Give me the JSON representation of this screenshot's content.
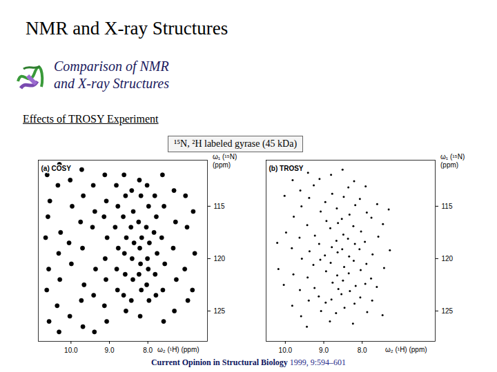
{
  "slide": {
    "title": "NMR and X-ray Structures",
    "subtitle_lines": [
      "Comparison of NMR",
      "and X-ray Structures"
    ],
    "section": "Effects of TROSY Experiment",
    "sample_box": "¹⁵N, ²H labeled gyrase (45 kDa)",
    "citation": {
      "journal": "Current Opinion in Structural Biology",
      "rest": "1999, 9:594–601"
    }
  },
  "chart_data": [
    {
      "type": "scatter",
      "title": "(a) COSY",
      "x_label": "ω₂ (¹H) (ppm)",
      "y_label": "ω₁ (¹⁵N) (ppm)",
      "xlim": [
        10.85,
        6.45
      ],
      "xticks": [
        10,
        9,
        8
      ],
      "ylim": [
        127.9,
        110.6
      ],
      "yticks": [
        115,
        120,
        125
      ],
      "color": "#000000",
      "marker": "blob",
      "x": [
        10.62,
        10.55,
        10.6,
        10.66,
        10.58,
        10.63,
        10.57,
        10.3,
        10.34,
        10.27,
        10.32,
        10.29,
        10.36,
        10.31,
        10.02,
        9.97,
        10.05,
        9.99,
        10.03,
        9.72,
        9.68,
        9.75,
        9.7,
        9.66,
        9.73,
        9.69,
        9.42,
        9.38,
        9.44,
        9.36,
        9.41,
        9.39,
        9.12,
        9.08,
        9.14,
        9.06,
        9.11,
        9.09,
        9.13,
        9.07,
        8.82,
        8.78,
        8.85,
        8.77,
        8.81,
        8.79,
        8.62,
        8.58,
        8.64,
        8.56,
        8.61,
        8.59,
        8.63,
        8.57,
        8.42,
        8.38,
        8.44,
        8.36,
        8.41,
        8.39,
        8.43,
        8.22,
        8.18,
        8.24,
        8.16,
        8.21,
        8.19,
        8.23,
        8.17,
        8.2,
        8.02,
        7.98,
        8.04,
        7.96,
        8.01,
        7.99,
        8.03,
        7.97,
        7.82,
        7.78,
        7.84,
        7.76,
        7.81,
        7.79,
        7.62,
        7.58,
        7.64,
        7.56,
        7.61,
        7.59,
        7.32,
        7.28,
        7.34,
        7.26,
        7.31,
        7.02,
        6.98,
        7.04,
        6.96,
        6.82,
        6.78,
        6.84
      ],
      "values": [
        112,
        114.5,
        116,
        118,
        121,
        123,
        126,
        111,
        113,
        117.5,
        119.5,
        122,
        124.5,
        127,
        112.5,
        115,
        118.5,
        120.5,
        125.5,
        111.5,
        114,
        116.5,
        119,
        122.5,
        124,
        126.5,
        113,
        115.5,
        117,
        121,
        123.5,
        127,
        112,
        114.5,
        116,
        118,
        120,
        122,
        124.5,
        126,
        113,
        115,
        117,
        119,
        121,
        123,
        112,
        114,
        116,
        118,
        119.5,
        121.5,
        123.5,
        125,
        113.5,
        115.5,
        117,
        118.5,
        120,
        122,
        124,
        112.5,
        114,
        116.5,
        118,
        119,
        120.5,
        121.5,
        123,
        125.5,
        113,
        115,
        117,
        118.5,
        120,
        121,
        122.5,
        124,
        114,
        116,
        117.5,
        119.5,
        121.5,
        123.5,
        112,
        115,
        118,
        120.5,
        123,
        126,
        113.5,
        116.5,
        119,
        122,
        125,
        114,
        117,
        121,
        124,
        115.5,
        119.5,
        123
      ]
    },
    {
      "type": "scatter",
      "title": "(b) TROSY",
      "x_label": "ω₂ (¹H) (ppm)",
      "y_label": "ω₁ (¹⁵N) (ppm)",
      "xlim": [
        10.5,
        6.1
      ],
      "xticks": [
        10,
        9,
        8
      ],
      "ylim": [
        127.9,
        110.6
      ],
      "yticks": [
        115,
        120,
        125
      ],
      "color": "#000000",
      "marker": "dot",
      "x": [
        10.21,
        10.18,
        10.02,
        9.98,
        10.04,
        9.81,
        9.78,
        9.83,
        9.79,
        9.82,
        9.61,
        9.58,
        9.63,
        9.57,
        9.62,
        9.59,
        9.41,
        9.38,
        9.43,
        9.37,
        9.42,
        9.39,
        9.44,
        9.26,
        9.23,
        9.27,
        9.24,
        9.11,
        9.08,
        9.12,
        9.09,
        9.13,
        9.07,
        8.96,
        8.93,
        8.97,
        8.94,
        8.95,
        8.81,
        8.78,
        8.83,
        8.79,
        8.82,
        8.77,
        8.8,
        8.84,
        8.66,
        8.63,
        8.67,
        8.64,
        8.65,
        8.62,
        8.68,
        8.51,
        8.48,
        8.53,
        8.49,
        8.52,
        8.47,
        8.5,
        8.54,
        8.46,
        8.36,
        8.33,
        8.37,
        8.34,
        8.35,
        8.32,
        8.21,
        8.18,
        8.23,
        8.19,
        8.22,
        8.17,
        8.2,
        8.24,
        8.06,
        8.03,
        8.07,
        8.04,
        8.05,
        7.91,
        7.88,
        7.93,
        7.89,
        7.92,
        7.87,
        7.76,
        7.73,
        7.77,
        7.74,
        7.61,
        7.58,
        7.62,
        7.46,
        7.43,
        7.47,
        7.31,
        7.28
      ],
      "values": [
        118.5,
        121,
        114,
        117.5,
        122.5,
        112.5,
        116,
        119,
        121.5,
        124.5,
        113.5,
        115,
        118,
        120,
        123,
        125.5,
        111.8,
        114.2,
        116.8,
        119.3,
        121.8,
        124,
        126.5,
        113,
        117.8,
        120.6,
        122.8,
        112.4,
        115.5,
        118.6,
        120.1,
        123.6,
        125,
        114.6,
        116.4,
        119.7,
        121.2,
        124.2,
        112,
        113.8,
        117.1,
        118.9,
        120.4,
        122.3,
        123.9,
        126,
        115.2,
        116.6,
        118.3,
        119.4,
        121.6,
        122.9,
        125.2,
        111.5,
        114.1,
        116.2,
        117.7,
        119.1,
        120.8,
        122.1,
        123.4,
        124.7,
        113.2,
        115.8,
        118.1,
        119.8,
        121.4,
        123.1,
        112.6,
        114.9,
        116.9,
        118.6,
        120.2,
        122.6,
        124.3,
        126.2,
        114.3,
        117.4,
        119.1,
        121.1,
        123.7,
        113.1,
        115.6,
        118.4,
        120.5,
        122.4,
        125.1,
        116.1,
        119.6,
        121.9,
        124,
        114.8,
        117.9,
        122.7,
        116.7,
        120.9,
        125.4,
        115.3,
        119.2
      ]
    }
  ]
}
